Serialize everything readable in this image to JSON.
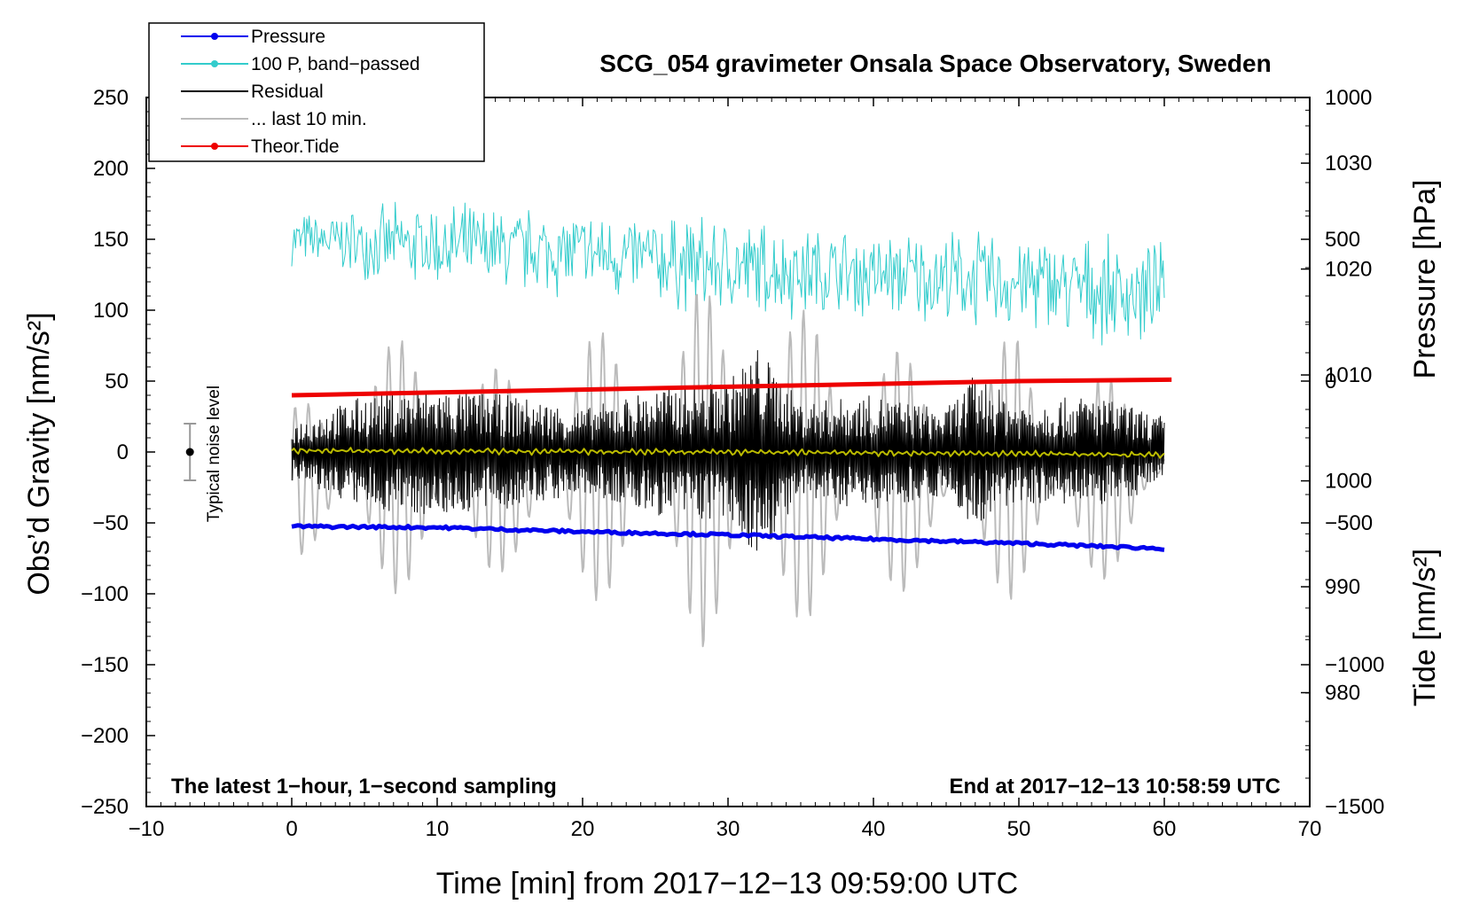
{
  "chart_data": {
    "type": "line",
    "title": "SCG_054 gravimeter Onsala Space Observatory, Sweden",
    "xlabel": "Time [min] from 2017−12−13 09:59:00 UTC",
    "ylabel_left": "Obs’d Gravity [nm/s²]",
    "ylabel_right_pressure": "Pressure [hPa]",
    "ylabel_right_tide": "Tide [nm/s²]",
    "xlim": [
      -10,
      70
    ],
    "ylim": [
      -250,
      250
    ],
    "pressure_lim": [
      969.25,
      1036.2
    ],
    "tide_lim": [
      -1500,
      1000
    ],
    "x_ticks": [
      {
        "v": -10,
        "label": "−10"
      },
      {
        "v": 0,
        "label": "0"
      },
      {
        "v": 10,
        "label": "10"
      },
      {
        "v": 20,
        "label": "20"
      },
      {
        "v": 30,
        "label": "30"
      },
      {
        "v": 40,
        "label": "40"
      },
      {
        "v": 50,
        "label": "50"
      },
      {
        "v": 60,
        "label": "60"
      },
      {
        "v": 70,
        "label": "70"
      }
    ],
    "y_ticks": [
      {
        "v": 250,
        "label": "250"
      },
      {
        "v": 200,
        "label": "200"
      },
      {
        "v": 150,
        "label": "150"
      },
      {
        "v": 100,
        "label": "100"
      },
      {
        "v": 50,
        "label": "50"
      },
      {
        "v": 0,
        "label": "0"
      },
      {
        "v": -50,
        "label": "−50"
      },
      {
        "v": -100,
        "label": "−100"
      },
      {
        "v": -150,
        "label": "−150"
      },
      {
        "v": -200,
        "label": "−200"
      },
      {
        "v": -250,
        "label": "−250"
      }
    ],
    "pressure_ticks": [
      {
        "v": 980,
        "label": "980"
      },
      {
        "v": 990,
        "label": "990"
      },
      {
        "v": 1000,
        "label": "1000"
      },
      {
        "v": 1010,
        "label": "1010"
      },
      {
        "v": 1020,
        "label": "1020"
      },
      {
        "v": 1030,
        "label": "1030"
      }
    ],
    "tide_ticks": [
      {
        "v": 1000,
        "label": "1000"
      },
      {
        "v": 500,
        "label": "500"
      },
      {
        "v": 0,
        "label": "0"
      },
      {
        "v": -500,
        "label": "−500"
      },
      {
        "v": -1000,
        "label": "−1000"
      },
      {
        "v": -1500,
        "label": "−1500"
      }
    ],
    "legend": [
      {
        "label": "Pressure",
        "color": "#0000ee",
        "marker": true
      },
      {
        "label": "100 P, band−passed",
        "color": "#33cccc",
        "marker": true
      },
      {
        "label": "Residual",
        "color": "#000000",
        "marker": false
      },
      {
        "label": "... last 10 min.",
        "color": "#bbbbbb",
        "marker": false
      },
      {
        "label": "Theor.Tide",
        "color": "#ee0000",
        "marker": true
      }
    ],
    "series": [
      {
        "name": "Pressure",
        "axis": "pressure",
        "color": "#0000ee",
        "x": [
          0,
          10,
          20,
          30,
          40,
          50,
          60
        ],
        "values": [
          995.7,
          995.6,
          995.2,
          994.9,
          994.5,
          994.1,
          993.6
        ]
      },
      {
        "name": "100 P, band−passed",
        "axis": "left",
        "color": "#33cccc",
        "x": [
          0,
          10,
          20,
          30,
          40,
          50,
          60
        ],
        "values": [
          150,
          145,
          140,
          130,
          125,
          120,
          110
        ],
        "amplitude": [
          20,
          35,
          35,
          40,
          35,
          40,
          40
        ]
      },
      {
        "name": "Residual",
        "axis": "left",
        "color": "#000000",
        "x": [
          0,
          5,
          10,
          15,
          20,
          25,
          30,
          32,
          35,
          40,
          45,
          47,
          50,
          55,
          60
        ],
        "values": [
          0,
          0,
          0,
          0,
          0,
          0,
          0,
          0,
          0,
          0,
          0,
          0,
          0,
          0,
          0
        ],
        "amplitude": [
          20,
          40,
          45,
          40,
          30,
          45,
          50,
          75,
          35,
          40,
          30,
          55,
          35,
          40,
          25
        ]
      },
      {
        "name": "Residual (smoothed)",
        "axis": "left",
        "color": "#bbbb00",
        "x": [
          0,
          30,
          60
        ],
        "values": [
          1,
          0,
          -2
        ]
      },
      {
        "name": "... last 10 min.",
        "axis": "tide",
        "color": "#bbbbbb",
        "x": [
          0,
          5,
          10,
          15,
          20,
          25,
          28,
          30,
          35,
          40,
          45,
          50,
          55,
          60
        ],
        "values": [
          -350,
          -300,
          -300,
          -320,
          -300,
          -300,
          -300,
          -300,
          -300,
          -300,
          -350,
          -300,
          -350,
          -300
        ],
        "amplitude": [
          250,
          450,
          450,
          350,
          500,
          400,
          650,
          600,
          550,
          550,
          250,
          500,
          400,
          200
        ]
      },
      {
        "name": "Theor.Tide",
        "axis": "tide",
        "color": "#ee0000",
        "x": [
          0,
          10,
          20,
          30,
          40,
          50,
          60.5
        ],
        "values": [
          -50,
          -40,
          -30,
          -20,
          -10,
          0,
          5
        ]
      }
    ],
    "noise_bar": {
      "x": -7,
      "center": 0,
      "low": -20,
      "high": 20,
      "label": "Typical noise level"
    },
    "notes": {
      "left": "The latest 1−hour, 1−second sampling",
      "right": "End at 2017−12−13 10:58:59 UTC"
    }
  }
}
